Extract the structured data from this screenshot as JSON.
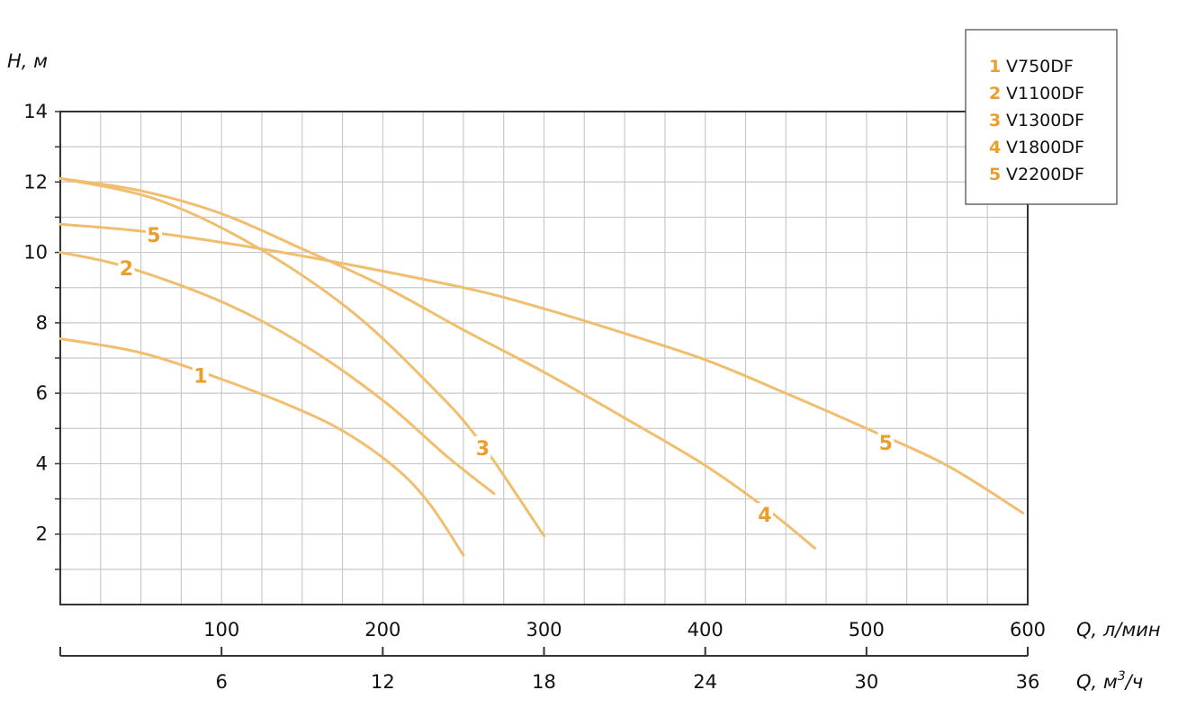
{
  "chart_data": {
    "type": "line",
    "y_axis": {
      "label": "H, м",
      "min": 0,
      "max": 14,
      "ticks": [
        2,
        4,
        6,
        8,
        10,
        12,
        14
      ]
    },
    "x_axis": {
      "label": "Q, л/мин",
      "min": 0,
      "max": 600,
      "ticks": [
        100,
        200,
        300,
        400,
        500,
        600
      ]
    },
    "x_axis_secondary": {
      "label_prefix": "Q, м",
      "label_sup": "3",
      "label_suffix": "/ч",
      "ticks": [
        "6",
        "12",
        "18",
        "24",
        "30",
        "36"
      ],
      "tick_positions_lpm": [
        100,
        200,
        300,
        400,
        500,
        600
      ]
    },
    "grid": true,
    "legend_position": "top-right",
    "series_color": "#f0be6e",
    "label_color": "#ec9e2c",
    "series": [
      {
        "id": "1",
        "name": "V750DF",
        "points": [
          [
            0,
            7.55
          ],
          [
            50,
            7.15
          ],
          [
            100,
            6.4
          ],
          [
            150,
            5.5
          ],
          [
            180,
            4.8
          ],
          [
            210,
            3.8
          ],
          [
            230,
            2.8
          ],
          [
            250,
            1.4
          ]
        ],
        "label_at": [
          87,
          6.5
        ]
      },
      {
        "id": "2",
        "name": "V1100DF",
        "points": [
          [
            0,
            10.0
          ],
          [
            40,
            9.6
          ],
          [
            100,
            8.6
          ],
          [
            150,
            7.4
          ],
          [
            200,
            5.8
          ],
          [
            240,
            4.2
          ],
          [
            269,
            3.15
          ]
        ],
        "label_at": [
          41,
          9.55
        ]
      },
      {
        "id": "3",
        "name": "V1300DF",
        "points": [
          [
            0,
            12.1
          ],
          [
            60,
            11.5
          ],
          [
            120,
            10.2
          ],
          [
            180,
            8.35
          ],
          [
            230,
            6.2
          ],
          [
            260,
            4.65
          ],
          [
            300,
            1.95
          ]
        ],
        "label_at": [
          262,
          4.45
        ]
      },
      {
        "id": "4",
        "name": "V1800DF",
        "points": [
          [
            0,
            12.1
          ],
          [
            50,
            11.75
          ],
          [
            100,
            11.1
          ],
          [
            150,
            10.1
          ],
          [
            200,
            9.05
          ],
          [
            250,
            7.8
          ],
          [
            300,
            6.6
          ],
          [
            350,
            5.3
          ],
          [
            400,
            3.95
          ],
          [
            440,
            2.65
          ],
          [
            468,
            1.6
          ]
        ],
        "label_at": [
          437,
          2.55
        ]
      },
      {
        "id": "5",
        "name": "V2200DF",
        "points": [
          [
            0,
            10.8
          ],
          [
            60,
            10.55
          ],
          [
            150,
            9.9
          ],
          [
            250,
            9.0
          ],
          [
            300,
            8.4
          ],
          [
            350,
            7.7
          ],
          [
            400,
            6.95
          ],
          [
            450,
            6.0
          ],
          [
            500,
            5.0
          ],
          [
            550,
            3.95
          ],
          [
            597,
            2.6
          ]
        ],
        "label_at": [
          58,
          10.5
        ]
      }
    ],
    "extra_labels": [
      {
        "id": "5",
        "label_at": [
          512,
          4.6
        ]
      }
    ]
  }
}
